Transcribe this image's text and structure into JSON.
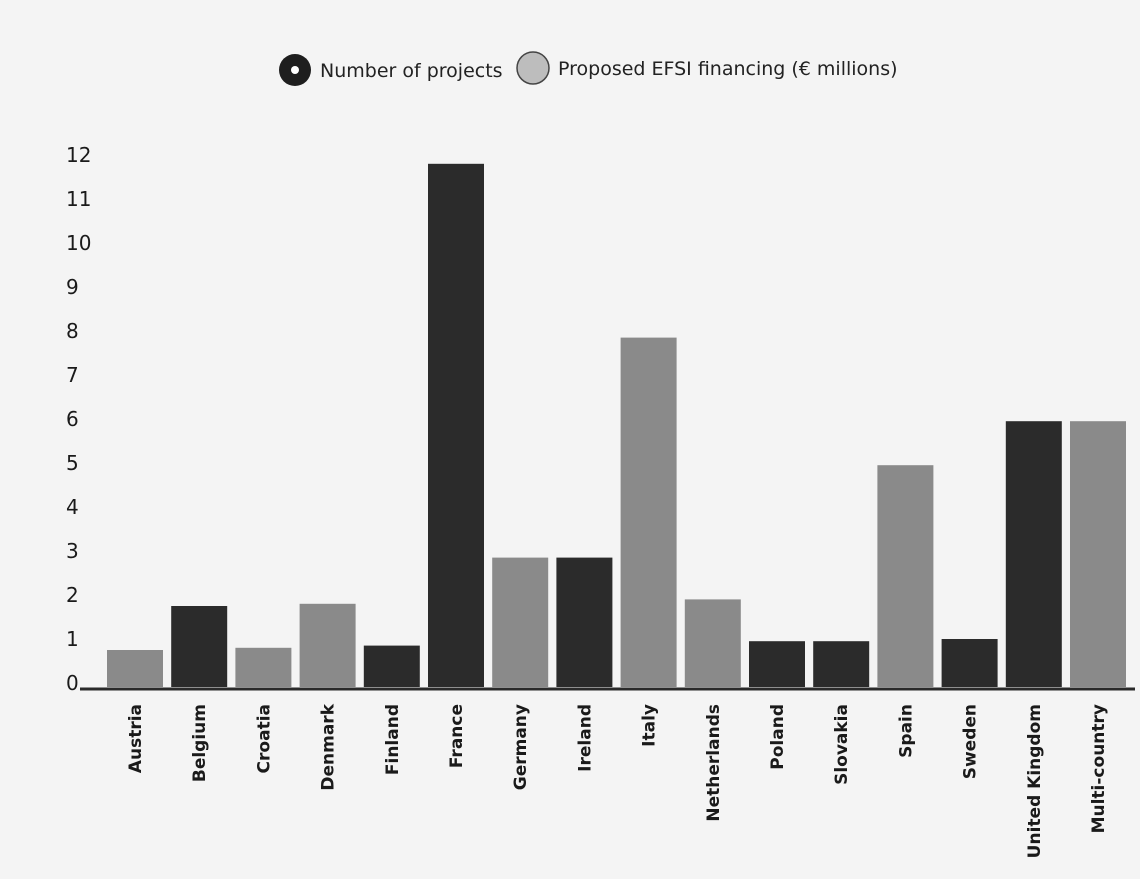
{
  "chart_data": {
    "type": "bar",
    "categories": [
      "Austria",
      "Belgium",
      "Croatia",
      "Denmark",
      "Finland",
      "France",
      "Germany",
      "Ireland",
      "Italy",
      "Netherlands",
      "Poland",
      "Slovakia",
      "Spain",
      "Sweden",
      "United Kingdom",
      "Multi-country"
    ],
    "values": [
      0.75,
      1.75,
      0.8,
      1.8,
      0.85,
      11.8,
      2.85,
      2.85,
      7.85,
      1.9,
      0.95,
      0.95,
      4.95,
      1.0,
      5.95,
      5.95
    ],
    "series_of_bar": [
      "Proposed EFSI financing (€ millions)",
      "Number of projects",
      "Proposed EFSI financing (€ millions)",
      "Proposed EFSI financing (€ millions)",
      "Number of projects",
      "Number of projects",
      "Proposed EFSI financing (€ millions)",
      "Number of projects",
      "Proposed EFSI financing (€ millions)",
      "Proposed EFSI financing (€ millions)",
      "Number of projects",
      "Number of projects",
      "Proposed EFSI financing (€ millions)",
      "Number of projects",
      "Number of projects",
      "Proposed EFSI financing (€ millions)"
    ],
    "series": [
      {
        "name": "Number of projects",
        "color": "#2b2b2b"
      },
      {
        "name": "Proposed EFSI financing (€ millions)",
        "color": "#8a8a8a"
      }
    ],
    "yticks": [
      "0",
      "1",
      "2",
      "3",
      "4",
      "5",
      "6",
      "7",
      "8",
      "9",
      "10",
      "11",
      "12"
    ],
    "ylim": [
      0,
      12
    ],
    "grid": false,
    "legend_position": "top-center",
    "title": "",
    "xlabel": "",
    "ylabel": ""
  }
}
